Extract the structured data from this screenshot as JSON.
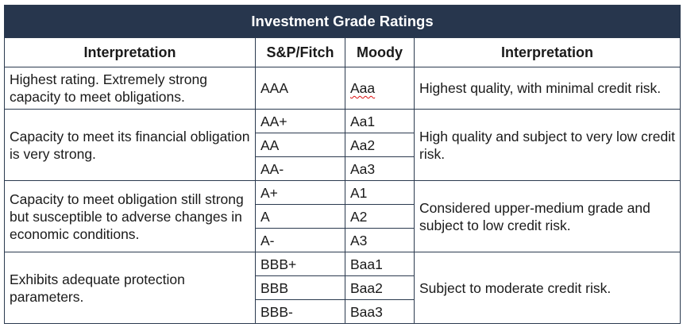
{
  "table": {
    "title": "Investment Grade Ratings",
    "headers": [
      "Interpretation",
      "S&P/Fitch",
      "Moody",
      "Interpretation"
    ],
    "groups": [
      {
        "left": "Highest rating. Extremely strong capacity to meet obligations.",
        "right": "Highest quality, with minimal credit risk.",
        "rows": [
          {
            "sp": "AAA",
            "moody": "Aaa"
          }
        ]
      },
      {
        "left": "Capacity to meet its financial obligation is very strong.",
        "right": "High quality and subject to very low credit risk.",
        "rows": [
          {
            "sp": "AA+",
            "moody": "Aa1"
          },
          {
            "sp": "AA",
            "moody": "Aa2"
          },
          {
            "sp": "AA-",
            "moody": "Aa3"
          }
        ]
      },
      {
        "left": "Capacity to meet obligation still strong but susceptible to adverse changes in economic conditions.",
        "right": "Considered upper-medium grade and subject to low credit risk.",
        "rows": [
          {
            "sp": "A+",
            "moody": "A1"
          },
          {
            "sp": "A",
            "moody": "A2"
          },
          {
            "sp": "A-",
            "moody": "A3"
          }
        ]
      },
      {
        "left": "Exhibits adequate protection parameters.",
        "right": "Subject to moderate credit risk.",
        "rows": [
          {
            "sp": "BBB+",
            "moody": "Baa1"
          },
          {
            "sp": "BBB",
            "moody": "Baa2"
          },
          {
            "sp": "BBB-",
            "moody": "Baa3"
          }
        ]
      }
    ]
  }
}
